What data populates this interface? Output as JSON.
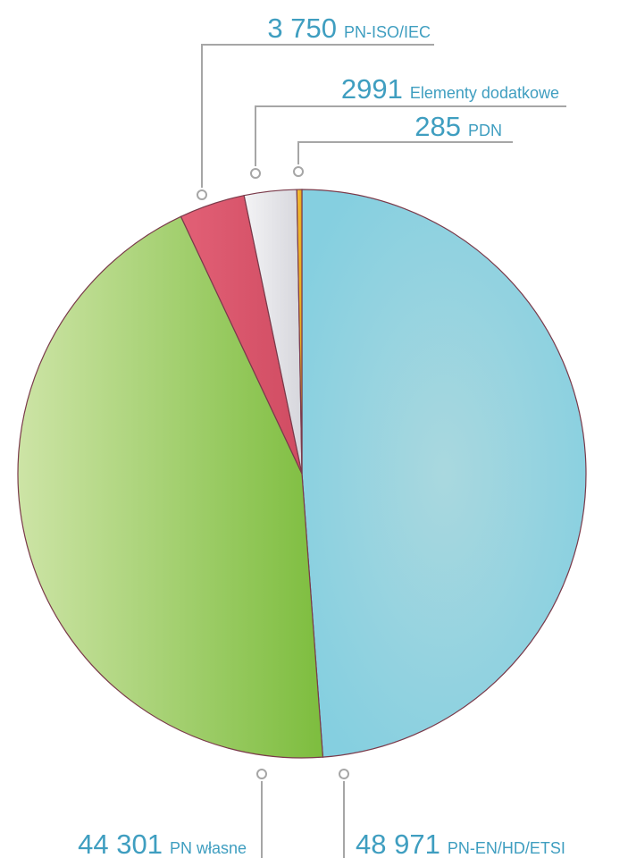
{
  "chart_data": {
    "type": "pie",
    "slices": [
      {
        "value": 48971,
        "value_label": "48 971",
        "name": "PN-EN/HD/ETSI",
        "color": "#8fd1e0"
      },
      {
        "value": 44301,
        "value_label": "44 301",
        "name": "PN własne",
        "color": "#8cc454"
      },
      {
        "value": 3750,
        "value_label": "3 750",
        "name": "PN-ISO/IEC",
        "color": "#d9546a"
      },
      {
        "value": 2991,
        "value_label": "2991",
        "name": "Elementy dodatkowe",
        "color": "#e6e6ea"
      },
      {
        "value": 285,
        "value_label": "285",
        "name": "PDN",
        "color": "#f2b21c"
      }
    ]
  }
}
